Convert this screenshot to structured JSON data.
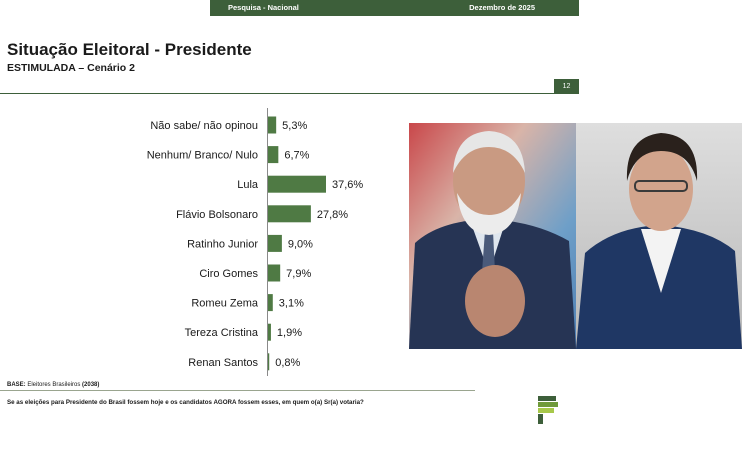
{
  "header": {
    "left": "Pesquisa - Nacional",
    "right": "Dezembro de 2025"
  },
  "title": "Situação Eleitoral - Presidente",
  "subtitle": "ESTIMULADA – Cenário 2",
  "page_number": "12",
  "base_note": {
    "label": "BASE:",
    "text": " Eleitores Brasileiros ",
    "count": "(2038)"
  },
  "question": "Se as eleições para Presidente do Brasil fossem hoje e os candidatos AGORA fossem esses, em quem o(a) Sr(a) votaria?",
  "colors": {
    "accent": "#3d5f3a",
    "bar": "#4f7a44"
  },
  "chart_data": {
    "type": "bar",
    "orientation": "horizontal",
    "title": "",
    "xlabel": "",
    "ylabel": "",
    "grid": false,
    "categories": [
      "Não sabe/ não opinou",
      "Nenhum/ Branco/ Nulo",
      "Lula",
      "Flávio Bolsonaro",
      "Ratinho Junior",
      "Ciro Gomes",
      "Romeu Zema",
      "Tereza Cristina",
      "Renan Santos"
    ],
    "values": [
      5.3,
      6.7,
      37.6,
      27.8,
      9.0,
      7.9,
      3.1,
      1.9,
      0.8
    ],
    "value_labels": [
      "5,3%",
      "6,7%",
      "37,6%",
      "27,8%",
      "9,0%",
      "7,9%",
      "3,1%",
      "1,9%",
      "0,8%"
    ],
    "xlim": [
      0,
      37.6
    ]
  }
}
